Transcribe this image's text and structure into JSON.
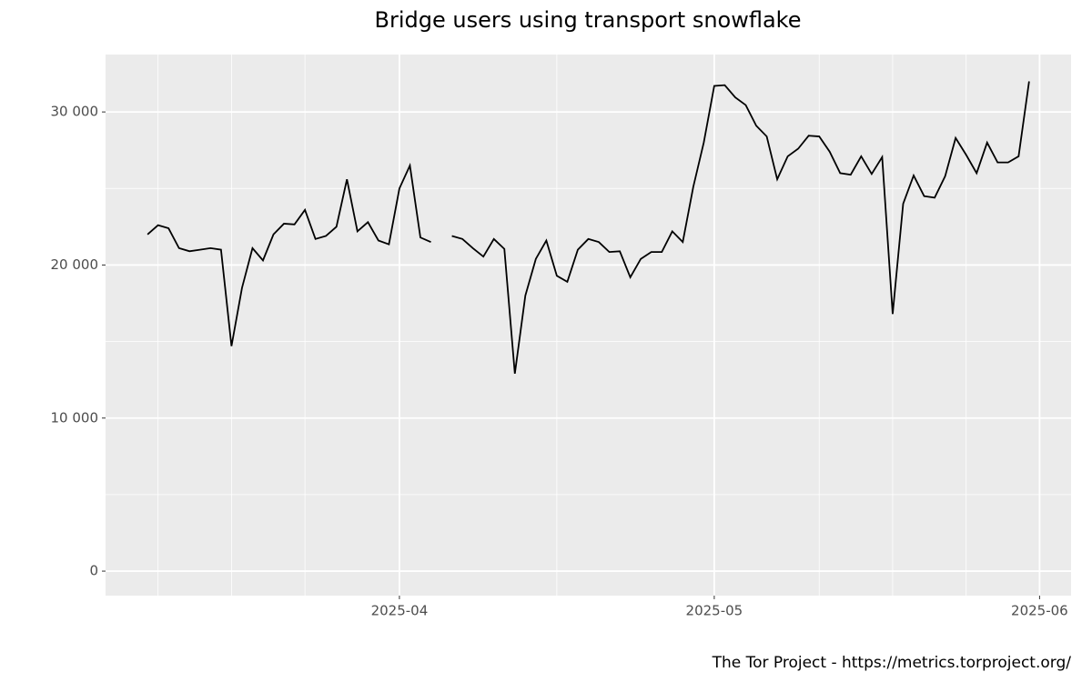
{
  "chart_data": {
    "type": "line",
    "title": "Bridge users using transport snowflake",
    "caption": "The Tor Project - https://metrics.torproject.org/",
    "x": [
      "2025-03-08",
      "2025-03-09",
      "2025-03-10",
      "2025-03-11",
      "2025-03-12",
      "2025-03-13",
      "2025-03-14",
      "2025-03-15",
      "2025-03-16",
      "2025-03-17",
      "2025-03-18",
      "2025-03-19",
      "2025-03-20",
      "2025-03-21",
      "2025-03-22",
      "2025-03-23",
      "2025-03-24",
      "2025-03-25",
      "2025-03-26",
      "2025-03-27",
      "2025-03-28",
      "2025-03-29",
      "2025-03-30",
      "2025-03-31",
      "2025-04-01",
      "2025-04-02",
      "2025-04-03",
      "2025-04-04",
      "2025-04-05",
      "2025-04-06",
      "2025-04-07",
      "2025-04-08",
      "2025-04-09",
      "2025-04-10",
      "2025-04-11",
      "2025-04-12",
      "2025-04-13",
      "2025-04-14",
      "2025-04-15",
      "2025-04-16",
      "2025-04-17",
      "2025-04-18",
      "2025-04-19",
      "2025-04-20",
      "2025-04-21",
      "2025-04-22",
      "2025-04-23",
      "2025-04-24",
      "2025-04-25",
      "2025-04-26",
      "2025-04-27",
      "2025-04-28",
      "2025-04-29",
      "2025-04-30",
      "2025-05-01",
      "2025-05-02",
      "2025-05-03",
      "2025-05-04",
      "2025-05-05",
      "2025-05-06",
      "2025-05-07",
      "2025-05-08",
      "2025-05-09",
      "2025-05-10",
      "2025-05-11",
      "2025-05-12",
      "2025-05-13",
      "2025-05-14",
      "2025-05-15",
      "2025-05-16",
      "2025-05-17",
      "2025-05-18",
      "2025-05-19",
      "2025-05-20",
      "2025-05-21",
      "2025-05-22",
      "2025-05-23",
      "2025-05-24",
      "2025-05-25",
      "2025-05-26",
      "2025-05-27",
      "2025-05-28",
      "2025-05-29",
      "2025-05-30",
      "2025-05-31"
    ],
    "series": [
      {
        "color": "#000000",
        "values": [
          22000,
          22600,
          22400,
          21100,
          20900,
          21000,
          21100,
          21000,
          14700,
          18500,
          21100,
          20300,
          22000,
          22700,
          22650,
          23600,
          21700,
          21900,
          22500,
          25600,
          22200,
          22800,
          21600,
          21350,
          25000,
          26500,
          21800,
          21500,
          null,
          21900,
          21700,
          21100,
          20550,
          21700,
          21050,
          12900,
          18000,
          20400,
          21600,
          19300,
          18900,
          21000,
          21700,
          21500,
          20850,
          20900,
          19200,
          20400,
          20850,
          20850,
          22200,
          21500,
          25100,
          28000,
          31700,
          31750,
          30950,
          30450,
          29100,
          28400,
          25600,
          27100,
          27600,
          28450,
          28400,
          27400,
          26000,
          25900,
          27100,
          25950,
          27050,
          16800,
          24000,
          25850,
          24500,
          24400,
          25800,
          28300,
          27200,
          26000,
          28000,
          26700,
          26700,
          27100,
          32000
        ]
      }
    ],
    "xlim": [
      "2025-03-04",
      "2025-06-04"
    ],
    "xticks": [
      {
        "value": "2025-04-01",
        "label": "2025-04"
      },
      {
        "value": "2025-05-01",
        "label": "2025-05"
      },
      {
        "value": "2025-06-01",
        "label": "2025-06"
      }
    ],
    "xminor": [
      "2025-03-09",
      "2025-03-16",
      "2025-03-23",
      "2025-04-16",
      "2025-05-11",
      "2025-05-18",
      "2025-05-25"
    ],
    "ylim": [
      -1600,
      33750
    ],
    "yticks": [
      0,
      {
        "value": 10000,
        "label": "10 000"
      },
      {
        "value": 20000,
        "label": "20 000"
      },
      {
        "value": 30000,
        "label": "30 000"
      }
    ],
    "yminor": [
      5000,
      15000,
      25000
    ],
    "grid": true
  }
}
